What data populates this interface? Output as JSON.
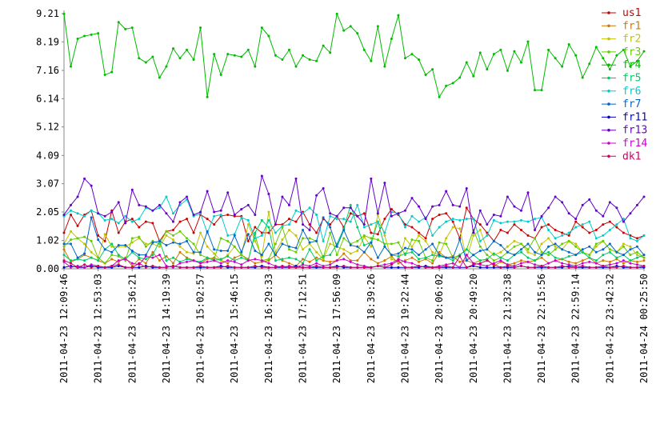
{
  "chart_data": {
    "type": "line",
    "categories": [
      "2011-04-23 12:09:46",
      null,
      null,
      null,
      null,
      "2011-04-23 12:53:03",
      null,
      null,
      null,
      null,
      "2011-04-23 13:36:21",
      null,
      null,
      null,
      null,
      "2011-04-23 14:19:39",
      null,
      null,
      null,
      null,
      "2011-04-23 15:02:57",
      null,
      null,
      null,
      null,
      "2011-04-23 15:46:15",
      null,
      null,
      null,
      null,
      "2011-04-23 16:29:33",
      null,
      null,
      null,
      null,
      "2011-04-23 17:12:51",
      null,
      null,
      null,
      null,
      "2011-04-23 17:56:09",
      null,
      null,
      null,
      null,
      "2011-04-23 18:39:26",
      null,
      null,
      null,
      null,
      "2011-04-23 19:22:44",
      null,
      null,
      null,
      null,
      "2011-04-23 20:06:02",
      null,
      null,
      null,
      null,
      "2011-04-23 20:49:20",
      null,
      null,
      null,
      null,
      "2011-04-23 21:32:38",
      null,
      null,
      null,
      null,
      "2011-04-23 22:15:56",
      null,
      null,
      null,
      null,
      "2011-04-23 22:59:14",
      null,
      null,
      null,
      null,
      "2011-04-23 23:42:32",
      null,
      null,
      null,
      null,
      "2011-04-24 00:25:50"
    ],
    "ylim": [
      0,
      9.21
    ],
    "yticks": [
      {
        "value": 0,
        "label": "0.00"
      },
      1.02,
      2.05,
      3.07,
      4.09,
      5.12,
      6.14,
      7.16,
      8.19,
      9.21
    ],
    "series": [
      {
        "name": "us1",
        "color": "#cc0000",
        "values": [
          1.3,
          1.95,
          1.55,
          1.95,
          2.1,
          1.2,
          1.0,
          2.1,
          1.3,
          1.7,
          1.8,
          1.5,
          1.7,
          1.65,
          1.0,
          1.35,
          1.4,
          1.7,
          1.8,
          1.3,
          1.95,
          1.8,
          1.6,
          1.9,
          1.95,
          1.9,
          1.9,
          1.0,
          1.5,
          1.3,
          1.3,
          1.6,
          1.6,
          1.8,
          1.7,
          2.05,
          1.6,
          1.3,
          1.8,
          1.6,
          1.9,
          1.5,
          2.0,
          1.9,
          2.0,
          1.3,
          1.25,
          1.8,
          2.15,
          1.95,
          1.6,
          1.5,
          1.3,
          1.1,
          1.8,
          1.95,
          2.0,
          1.7,
          1.1,
          2.2,
          1.8,
          1.6,
          1.3,
          1.0,
          1.4,
          1.3,
          1.6,
          1.4,
          1.2,
          1.1,
          1.5,
          1.6,
          1.4,
          1.3,
          1.2,
          1.7,
          1.5,
          1.3,
          1.4,
          1.6,
          1.7,
          1.5,
          1.3,
          1.2,
          1.1,
          1.2
        ]
      },
      {
        "name": "fr1",
        "color": "#cc7a00",
        "values": [
          0.7,
          0.25,
          0.35,
          0.5,
          0.4,
          0.3,
          0.2,
          0.35,
          0.25,
          0.4,
          0.1,
          0.35,
          0.2,
          0.6,
          0.3,
          0.45,
          0.2,
          0.6,
          0.4,
          0.3,
          0.2,
          0.35,
          0.4,
          0.3,
          0.2,
          0.4,
          0.5,
          0.35,
          0.2,
          0.25,
          0.3,
          0.5,
          0.3,
          0.2,
          0.1,
          0.35,
          0.25,
          0.4,
          0.3,
          0.25,
          0.3,
          0.55,
          0.3,
          0.3,
          0.6,
          0.35,
          0.2,
          0.3,
          0.45,
          0.2,
          0.3,
          0.4,
          0.25,
          0.35,
          0.2,
          0.6,
          0.4,
          0.45,
          0.25,
          0.3,
          0.2,
          0.3,
          0.35,
          0.1,
          0.25,
          0.15,
          0.2,
          0.3,
          0.25,
          0.3,
          0.4,
          0.2,
          0.3,
          0.35,
          0.25,
          0.2,
          0.3,
          0.4,
          0.2,
          0.3,
          0.25,
          0.35,
          0.2,
          0.3,
          0.25,
          0.3
        ]
      },
      {
        "name": "fr2",
        "color": "#c4c400",
        "values": [
          0.9,
          1.35,
          1.1,
          0.9,
          0.6,
          0.4,
          1.25,
          0.8,
          0.8,
          0.8,
          0.95,
          1.1,
          0.9,
          0.9,
          0.8,
          1.2,
          1.05,
          0.8,
          0.6,
          0.55,
          1.3,
          0.8,
          0.55,
          0.3,
          0.5,
          0.8,
          0.5,
          1.6,
          1.0,
          0.45,
          2.05,
          0.6,
          1.05,
          1.4,
          1.2,
          0.7,
          0.9,
          0.6,
          0.35,
          0.9,
          0.8,
          0.7,
          0.55,
          0.65,
          1.15,
          0.8,
          1.95,
          1.2,
          0.35,
          0.25,
          1.1,
          0.8,
          1.2,
          1.0,
          0.6,
          0.5,
          1.1,
          1.5,
          1.45,
          0.35,
          1.2,
          1.4,
          0.7,
          0.5,
          0.6,
          0.8,
          1.0,
          0.9,
          0.6,
          0.5,
          0.9,
          1.1,
          0.8,
          0.7,
          1.0,
          0.9,
          0.6,
          0.5,
          0.8,
          1.0,
          0.7,
          0.6,
          0.9,
          0.8,
          0.5,
          0.4
        ]
      },
      {
        "name": "fr3",
        "color": "#66cc00",
        "values": [
          0.8,
          1.05,
          1.1,
          1.15,
          1.0,
          0.4,
          0.2,
          0.5,
          0.45,
          0.3,
          1.1,
          1.15,
          0.8,
          1.0,
          0.9,
          1.35,
          1.2,
          1.35,
          1.1,
          0.9,
          0.5,
          0.4,
          0.35,
          1.1,
          1.0,
          0.8,
          0.5,
          0.3,
          1.25,
          0.3,
          0.35,
          0.9,
          1.5,
          0.7,
          0.6,
          1.1,
          1.1,
          1.0,
          0.4,
          1.3,
          0.5,
          1.1,
          0.9,
          1.0,
          1.2,
          1.1,
          1.05,
          0.9,
          0.9,
          0.95,
          0.5,
          1.05,
          1.0,
          0.4,
          0.3,
          0.95,
          0.9,
          0.4,
          0.5,
          0.7,
          1.4,
          0.8,
          0.5,
          0.3,
          0.4,
          0.6,
          0.8,
          0.9,
          0.7,
          1.1,
          0.6,
          0.5,
          0.7,
          0.9,
          1.0,
          0.8,
          0.6,
          0.5,
          0.9,
          1.0,
          0.7,
          0.6,
          0.8,
          0.5,
          0.6,
          0.4
        ]
      },
      {
        "name": "fr4",
        "color": "#00bb00",
        "values": [
          9.2,
          7.3,
          8.3,
          8.4,
          8.45,
          8.5,
          7.0,
          7.1,
          8.9,
          8.65,
          8.7,
          7.6,
          7.45,
          7.65,
          6.9,
          7.3,
          7.95,
          7.6,
          7.9,
          7.55,
          8.7,
          6.2,
          7.75,
          7.0,
          7.75,
          7.7,
          7.65,
          7.9,
          7.3,
          8.7,
          8.4,
          7.7,
          7.55,
          7.9,
          7.3,
          7.7,
          7.55,
          7.5,
          8.05,
          7.8,
          9.2,
          8.6,
          8.75,
          8.5,
          7.9,
          7.5,
          8.75,
          7.3,
          8.3,
          9.15,
          7.6,
          7.75,
          7.55,
          7.0,
          7.2,
          6.2,
          6.6,
          6.7,
          6.9,
          7.45,
          6.95,
          7.8,
          7.2,
          7.75,
          7.9,
          7.15,
          7.85,
          7.45,
          8.2,
          6.45,
          6.45,
          7.9,
          7.6,
          7.3,
          8.1,
          7.7,
          6.9,
          7.4,
          8.0,
          7.6,
          7.2,
          7.7,
          7.9,
          7.3,
          7.5,
          7.85
        ]
      },
      {
        "name": "fr5",
        "color": "#00cc66",
        "values": [
          0.5,
          0.3,
          0.35,
          0.3,
          0.4,
          0.3,
          0.7,
          0.9,
          0.5,
          0.35,
          0.6,
          0.4,
          0.35,
          0.5,
          1.0,
          0.3,
          0.4,
          0.25,
          0.35,
          0.3,
          0.25,
          0.4,
          0.3,
          0.35,
          0.45,
          0.3,
          0.4,
          0.3,
          1.3,
          1.75,
          1.5,
          0.3,
          0.35,
          0.4,
          0.35,
          0.2,
          0.7,
          0.3,
          0.45,
          0.5,
          0.9,
          1.45,
          2.3,
          1.5,
          0.85,
          0.95,
          1.7,
          0.8,
          0.5,
          0.45,
          0.55,
          0.6,
          0.35,
          0.4,
          0.5,
          0.45,
          0.4,
          0.3,
          0.5,
          0.7,
          0.5,
          0.3,
          0.35,
          0.55,
          0.4,
          0.3,
          0.5,
          0.6,
          0.4,
          0.3,
          0.5,
          0.6,
          0.4,
          0.35,
          0.45,
          0.5,
          0.6,
          0.4,
          0.3,
          0.5,
          0.6,
          0.4,
          0.5,
          0.3,
          0.4,
          0.5
        ]
      },
      {
        "name": "fr6",
        "color": "#00cccc",
        "values": [
          1.9,
          2.1,
          2.0,
          1.9,
          2.1,
          2.0,
          1.75,
          1.8,
          1.65,
          1.9,
          1.7,
          1.8,
          2.2,
          2.1,
          2.2,
          2.6,
          2.0,
          2.3,
          2.5,
          1.9,
          2.0,
          1.3,
          1.9,
          1.95,
          1.2,
          1.25,
          1.85,
          1.75,
          1.1,
          1.2,
          1.75,
          1.3,
          1.55,
          1.6,
          2.1,
          2.0,
          2.2,
          1.95,
          1.0,
          1.9,
          1.8,
          1.8,
          1.7,
          2.3,
          1.5,
          1.6,
          1.7,
          1.3,
          2.05,
          2.0,
          1.5,
          1.9,
          1.7,
          1.85,
          1.2,
          1.5,
          1.7,
          1.8,
          1.75,
          1.8,
          1.8,
          1.0,
          1.2,
          1.75,
          1.65,
          1.7,
          1.7,
          1.75,
          1.7,
          1.8,
          1.85,
          1.4,
          1.1,
          1.2,
          1.3,
          1.5,
          1.6,
          1.7,
          1.1,
          1.2,
          1.4,
          1.6,
          1.8,
          1.1,
          1.0,
          1.2
        ]
      },
      {
        "name": "fr7",
        "color": "#0066cc",
        "values": [
          0.9,
          0.9,
          0.4,
          0.55,
          1.85,
          1.05,
          0.7,
          0.6,
          0.85,
          0.85,
          0.65,
          0.5,
          0.5,
          0.95,
          1.0,
          0.85,
          0.95,
          0.9,
          1.0,
          0.6,
          0.6,
          1.35,
          0.7,
          0.65,
          0.65,
          1.2,
          0.6,
          1.25,
          0.65,
          0.5,
          0.9,
          0.5,
          0.9,
          0.8,
          0.75,
          1.4,
          0.95,
          1.0,
          1.85,
          1.5,
          0.8,
          1.4,
          0.85,
          0.8,
          0.6,
          0.95,
          0.4,
          0.8,
          0.5,
          0.55,
          0.75,
          0.7,
          0.5,
          0.7,
          0.9,
          0.5,
          0.4,
          0.4,
          1.05,
          0.3,
          0.5,
          0.65,
          0.7,
          1.0,
          0.85,
          0.6,
          0.5,
          0.7,
          0.9,
          0.6,
          0.5,
          0.8,
          0.9,
          0.7,
          0.6,
          0.5,
          0.7,
          0.8,
          0.6,
          0.7,
          0.9,
          0.6,
          0.5,
          0.7,
          0.8,
          0.5
        ]
      },
      {
        "name": "fr11",
        "color": "#0000cc",
        "values": [
          0.05,
          0.1,
          0.05,
          0.05,
          0.1,
          0.05,
          0.05,
          0.05,
          0.1,
          0.05,
          0.05,
          0.05,
          0.1,
          0.05,
          0.05,
          0.05,
          0.1,
          0.05,
          0.05,
          0.05,
          0.05,
          0.05,
          0.05,
          0.1,
          0.05,
          0.05,
          0.05,
          0.05,
          0.05,
          0.1,
          0.05,
          0.05,
          0.05,
          0.05,
          0.1,
          0.05,
          0.05,
          0.05,
          0.05,
          0.05,
          0.1,
          0.05,
          0.05,
          0.05,
          0.05,
          0.05,
          0.1,
          0.05,
          0.05,
          0.05,
          0.05,
          0.05,
          0.05,
          0.1,
          0.05,
          0.05,
          0.05,
          0.05,
          0.05,
          0.05,
          0.1,
          0.05,
          0.05,
          0.05,
          0.05,
          0.05,
          0.05,
          0.1,
          0.05,
          0.05,
          0.05,
          0.05,
          0.05,
          0.05,
          0.1,
          0.05,
          0.05,
          0.05,
          0.05,
          0.05,
          0.05,
          0.1,
          0.05,
          0.05,
          0.05,
          0.05
        ]
      },
      {
        "name": "fr13",
        "color": "#6600cc",
        "values": [
          1.95,
          2.3,
          2.6,
          3.25,
          3.0,
          2.0,
          1.9,
          2.05,
          2.4,
          1.65,
          2.85,
          2.3,
          2.25,
          2.1,
          2.3,
          2.0,
          1.7,
          2.4,
          2.6,
          1.95,
          2.05,
          2.8,
          2.05,
          2.1,
          2.75,
          1.95,
          2.15,
          2.3,
          1.95,
          3.35,
          2.7,
          1.6,
          2.6,
          2.3,
          3.25,
          1.6,
          1.4,
          2.65,
          2.9,
          2.0,
          1.9,
          2.2,
          2.2,
          1.9,
          1.6,
          3.25,
          2.0,
          3.1,
          1.9,
          2.0,
          2.1,
          2.55,
          2.25,
          1.8,
          2.25,
          2.3,
          2.8,
          2.3,
          2.25,
          2.9,
          1.3,
          2.1,
          1.6,
          1.95,
          1.9,
          2.6,
          2.25,
          2.1,
          2.75,
          1.4,
          1.9,
          2.2,
          2.6,
          2.4,
          2.0,
          1.8,
          2.3,
          2.5,
          2.1,
          1.9,
          2.4,
          2.2,
          1.7,
          2.0,
          2.3,
          2.6
        ]
      },
      {
        "name": "fr14",
        "color": "#cc00cc",
        "values": [
          0.25,
          0.05,
          0.1,
          0.05,
          0.15,
          0.1,
          0.05,
          0.1,
          0.3,
          0.35,
          0.2,
          0.15,
          0.45,
          0.4,
          0.5,
          0.1,
          0.05,
          0.2,
          0.25,
          0.3,
          0.2,
          0.25,
          0.3,
          0.2,
          0.3,
          0.25,
          0.15,
          0.3,
          0.35,
          0.3,
          0.2,
          0.1,
          0.05,
          0.1,
          0.05,
          0.15,
          0.1,
          0.2,
          0.1,
          0.15,
          0.3,
          0.35,
          0.25,
          0.15,
          0.1,
          0.05,
          0.1,
          0.15,
          0.2,
          0.35,
          0.25,
          0.2,
          0.1,
          0.05,
          0.05,
          0.1,
          0.15,
          0.2,
          0.05,
          0.5,
          0.2,
          0.15,
          0.1,
          0.2,
          0.3,
          0.15,
          0.1,
          0.2,
          0.25,
          0.15,
          0.1,
          0.2,
          0.3,
          0.2,
          0.15,
          0.1,
          0.2,
          0.25,
          0.2,
          0.1,
          0.15,
          0.2,
          0.3,
          0.2,
          0.15,
          0.1
        ]
      },
      {
        "name": "dk1",
        "color": "#cc0066",
        "values": [
          0.3,
          0.2,
          0.05,
          0.15,
          0.05,
          0.1,
          0.05,
          0.1,
          0.15,
          0.05,
          0.05,
          0.2,
          0.05,
          0.1,
          0.05,
          0.05,
          0.1,
          0.05,
          0.05,
          0.05,
          0.1,
          0.05,
          0.05,
          0.05,
          0.1,
          0.05,
          0.05,
          0.05,
          0.1,
          0.05,
          0.05,
          0.05,
          0.1,
          0.05,
          0.05,
          0.05,
          0.05,
          0.1,
          0.05,
          0.05,
          0.05,
          0.1,
          0.05,
          0.05,
          0.05,
          0.05,
          0.1,
          0.05,
          0.15,
          0.3,
          0.05,
          0.05,
          0.1,
          0.05,
          0.05,
          0.05,
          0.1,
          0.05,
          0.45,
          0.05,
          0.15,
          0.2,
          0.3,
          0.15,
          0.05,
          0.1,
          0.05,
          0.1,
          0.05,
          0.05,
          0.1,
          0.05,
          0.05,
          0.1,
          0.05,
          0.05,
          0.1,
          0.05,
          0.05,
          0.1,
          0.05,
          0.05,
          0.1,
          0.05,
          0.05,
          0.1
        ]
      }
    ]
  }
}
